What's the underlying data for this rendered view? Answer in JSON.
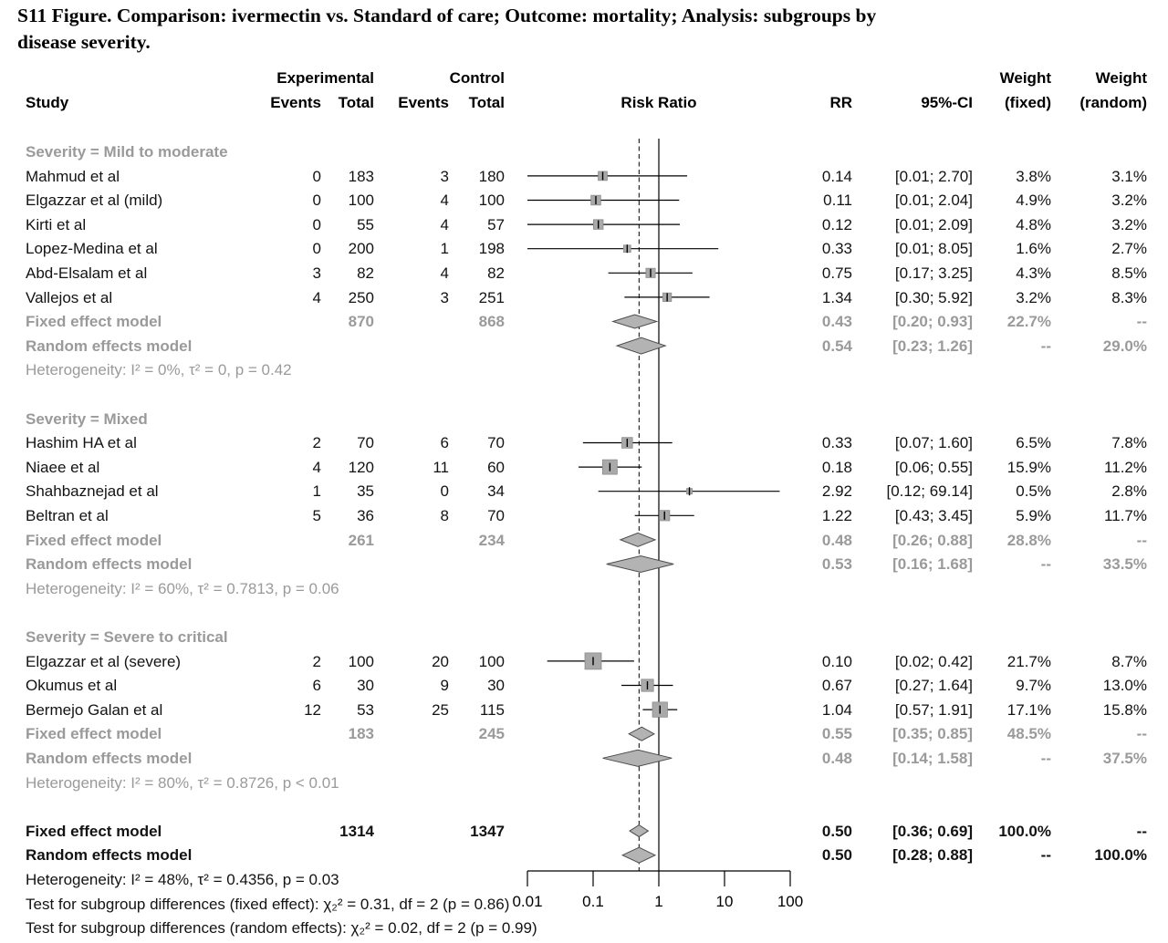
{
  "title": {
    "line1": "S11 Figure. Comparison: ivermectin vs. Standard of care; Outcome: mortality; Analysis: subgroups by",
    "line2": "disease severity."
  },
  "header": {
    "study": "Study",
    "experimental": "Experimental",
    "control": "Control",
    "events": "Events",
    "total": "Total",
    "risk_ratio": "Risk Ratio",
    "rr": "RR",
    "ci": "95%-CI",
    "weight": "Weight",
    "weight_fixed_sub": "(fixed)",
    "weight_random_sub": "(random)"
  },
  "colors": {
    "text": "#131313",
    "muted_gray": "#9a9a9a",
    "square_fill": "#a9a9a9",
    "square_stroke": "#8c8c8c",
    "diamond_fill": "#b3b3b3",
    "diamond_stroke": "#4d4d4d",
    "line": "#000000"
  },
  "chart_data": {
    "type": "forest",
    "title": "Comparison: ivermectin vs. Standard of care; Outcome: mortality; Analysis: subgroups by disease severity",
    "x_scale": "log10",
    "reference_line_at": 1,
    "dashed_line_at": 0.5,
    "x_ticks": [
      {
        "v": 0.01,
        "label": "0.01"
      },
      {
        "v": 0.1,
        "label": "0.1"
      },
      {
        "v": 1,
        "label": "1"
      },
      {
        "v": 10,
        "label": "10"
      },
      {
        "v": 100,
        "label": "100"
      }
    ],
    "rows": [
      {
        "t": "sub",
        "label": "Severity = Mild to moderate"
      },
      {
        "t": "study",
        "label": "Mahmud et al",
        "ee": "0",
        "et": "183",
        "ce": "3",
        "ct": "180",
        "rr": "0.14",
        "ci": "[0.01; 2.70]",
        "wf": "3.8%",
        "wr": "3.1%",
        "v": 0.14,
        "lo": 0.01,
        "hi": 2.7,
        "w": 3.8
      },
      {
        "t": "study",
        "label": "Elgazzar et al (mild)",
        "ee": "0",
        "et": "100",
        "ce": "4",
        "ct": "100",
        "rr": "0.11",
        "ci": "[0.01; 2.04]",
        "wf": "4.9%",
        "wr": "3.2%",
        "v": 0.11,
        "lo": 0.01,
        "hi": 2.04,
        "w": 4.9
      },
      {
        "t": "study",
        "label": "Kirti et al",
        "ee": "0",
        "et": "55",
        "ce": "4",
        "ct": "57",
        "rr": "0.12",
        "ci": "[0.01; 2.09]",
        "wf": "4.8%",
        "wr": "3.2%",
        "v": 0.12,
        "lo": 0.01,
        "hi": 2.09,
        "w": 4.8
      },
      {
        "t": "study",
        "label": "Lopez-Medina et al",
        "ee": "0",
        "et": "200",
        "ce": "1",
        "ct": "198",
        "rr": "0.33",
        "ci": "[0.01; 8.05]",
        "wf": "1.6%",
        "wr": "2.7%",
        "v": 0.33,
        "lo": 0.01,
        "hi": 8.05,
        "w": 1.6
      },
      {
        "t": "study",
        "label": "Abd-Elsalam et al",
        "ee": "3",
        "et": "82",
        "ce": "4",
        "ct": "82",
        "rr": "0.75",
        "ci": "[0.17; 3.25]",
        "wf": "4.3%",
        "wr": "8.5%",
        "v": 0.75,
        "lo": 0.17,
        "hi": 3.25,
        "w": 4.3
      },
      {
        "t": "study",
        "label": "Vallejos et al",
        "ee": "4",
        "et": "250",
        "ce": "3",
        "ct": "251",
        "rr": "1.34",
        "ci": "[0.30; 5.92]",
        "wf": "3.2%",
        "wr": "8.3%",
        "v": 1.34,
        "lo": 0.3,
        "hi": 5.92,
        "w": 3.2
      },
      {
        "t": "fixed",
        "label": "Fixed effect model",
        "et": "870",
        "ct": "868",
        "rr": "0.43",
        "ci": "[0.20; 0.93]",
        "wf": "22.7%",
        "wr": "--",
        "v": 0.43,
        "lo": 0.2,
        "hi": 0.93
      },
      {
        "t": "random",
        "label": "Random effects model",
        "rr": "0.54",
        "ci": "[0.23; 1.26]",
        "wf": "--",
        "wr": "29.0%",
        "v": 0.54,
        "lo": 0.23,
        "hi": 1.26
      },
      {
        "t": "het",
        "label": "Heterogeneity: I² = 0%, τ² = 0, p = 0.42"
      },
      {
        "t": "gap"
      },
      {
        "t": "sub",
        "label": "Severity = Mixed"
      },
      {
        "t": "study",
        "label": "Hashim HA et al",
        "ee": "2",
        "et": "70",
        "ce": "6",
        "ct": "70",
        "rr": "0.33",
        "ci": "[0.07; 1.60]",
        "wf": "6.5%",
        "wr": "7.8%",
        "v": 0.33,
        "lo": 0.07,
        "hi": 1.6,
        "w": 6.5
      },
      {
        "t": "study",
        "label": "Niaee et al",
        "ee": "4",
        "et": "120",
        "ce": "11",
        "ct": "60",
        "rr": "0.18",
        "ci": "[0.06; 0.55]",
        "wf": "15.9%",
        "wr": "11.2%",
        "v": 0.18,
        "lo": 0.06,
        "hi": 0.55,
        "w": 15.9
      },
      {
        "t": "study",
        "label": "Shahbaznejad et al",
        "ee": "1",
        "et": "35",
        "ce": "0",
        "ct": "34",
        "rr": "2.92",
        "ci": "[0.12; 69.14]",
        "wf": "0.5%",
        "wr": "2.8%",
        "v": 2.92,
        "lo": 0.12,
        "hi": 69.14,
        "w": 0.5
      },
      {
        "t": "study",
        "label": "Beltran et al",
        "ee": "5",
        "et": "36",
        "ce": "8",
        "ct": "70",
        "rr": "1.22",
        "ci": "[0.43; 3.45]",
        "wf": "5.9%",
        "wr": "11.7%",
        "v": 1.22,
        "lo": 0.43,
        "hi": 3.45,
        "w": 5.9
      },
      {
        "t": "fixed",
        "label": "Fixed effect model",
        "et": "261",
        "ct": "234",
        "rr": "0.48",
        "ci": "[0.26; 0.88]",
        "wf": "28.8%",
        "wr": "--",
        "v": 0.48,
        "lo": 0.26,
        "hi": 0.88
      },
      {
        "t": "random",
        "label": "Random effects model",
        "rr": "0.53",
        "ci": "[0.16; 1.68]",
        "wf": "--",
        "wr": "33.5%",
        "v": 0.53,
        "lo": 0.16,
        "hi": 1.68
      },
      {
        "t": "het",
        "label": "Heterogeneity: I² = 60%, τ² = 0.7813, p = 0.06"
      },
      {
        "t": "gap"
      },
      {
        "t": "sub",
        "label": "Severity = Severe to critical"
      },
      {
        "t": "study",
        "label": "Elgazzar et al (severe)",
        "ee": "2",
        "et": "100",
        "ce": "20",
        "ct": "100",
        "rr": "0.10",
        "ci": "[0.02; 0.42]",
        "wf": "21.7%",
        "wr": "8.7%",
        "v": 0.1,
        "lo": 0.02,
        "hi": 0.42,
        "w": 21.7
      },
      {
        "t": "study",
        "label": "Okumus et al",
        "ee": "6",
        "et": "30",
        "ce": "9",
        "ct": "30",
        "rr": "0.67",
        "ci": "[0.27; 1.64]",
        "wf": "9.7%",
        "wr": "13.0%",
        "v": 0.67,
        "lo": 0.27,
        "hi": 1.64,
        "w": 9.7
      },
      {
        "t": "study",
        "label": "Bermejo Galan et al",
        "ee": "12",
        "et": "53",
        "ce": "25",
        "ct": "115",
        "rr": "1.04",
        "ci": "[0.57; 1.91]",
        "wf": "17.1%",
        "wr": "15.8%",
        "v": 1.04,
        "lo": 0.57,
        "hi": 1.91,
        "w": 17.1
      },
      {
        "t": "fixed",
        "label": "Fixed effect model",
        "et": "183",
        "ct": "245",
        "rr": "0.55",
        "ci": "[0.35; 0.85]",
        "wf": "48.5%",
        "wr": "--",
        "v": 0.55,
        "lo": 0.35,
        "hi": 0.85
      },
      {
        "t": "random",
        "label": "Random effects model",
        "rr": "0.48",
        "ci": "[0.14; 1.58]",
        "wf": "--",
        "wr": "37.5%",
        "v": 0.48,
        "lo": 0.14,
        "hi": 1.58
      },
      {
        "t": "het",
        "label": "Heterogeneity: I² = 80%, τ² = 0.8726, p < 0.01"
      },
      {
        "t": "gap"
      },
      {
        "t": "ofixed",
        "label": "Fixed effect model",
        "et": "1314",
        "ct": "1347",
        "rr": "0.50",
        "ci": "[0.36; 0.69]",
        "wf": "100.0%",
        "wr": "--",
        "v": 0.5,
        "lo": 0.36,
        "hi": 0.69
      },
      {
        "t": "orandom",
        "label": "Random effects model",
        "rr": "0.50",
        "ci": "[0.28; 0.88]",
        "wf": "--",
        "wr": "100.0%",
        "v": 0.5,
        "lo": 0.28,
        "hi": 0.88
      },
      {
        "t": "note",
        "label": "Heterogeneity: I² = 48%, τ² = 0.4356, p = 0.03"
      },
      {
        "t": "note",
        "label": "Test for subgroup differences (fixed effect): χ₂² = 0.31, df = 2 (p = 0.86)"
      },
      {
        "t": "note",
        "label": "Test for subgroup differences (random effects): χ₂² = 0.02, df = 2 (p = 0.99)"
      }
    ]
  }
}
